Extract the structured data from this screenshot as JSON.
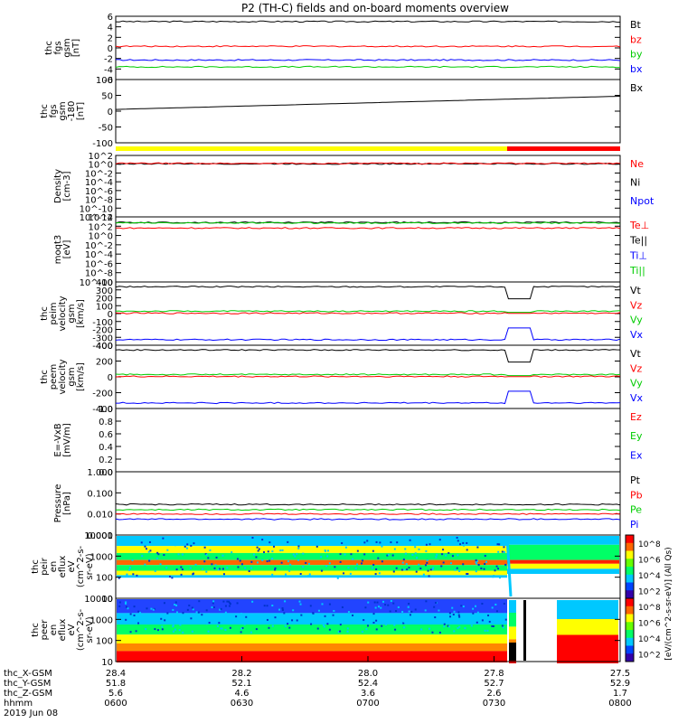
{
  "title": "P2 (TH-C) fields and on-board moments overview",
  "chart_data": {
    "type": "line",
    "x_time": [
      "0600",
      "0630",
      "0700",
      "0730",
      "0800"
    ],
    "orbit": {
      "rows": [
        {
          "label": "thc_X-GSM",
          "values": [
            "28.4",
            "28.2",
            "28.0",
            "27.8",
            "27.5"
          ]
        },
        {
          "label": "thc_Y-GSM",
          "values": [
            "51.8",
            "52.1",
            "52.4",
            "52.7",
            "52.9"
          ]
        },
        {
          "label": "thc_Z-GSM",
          "values": [
            "5.6",
            "4.6",
            "3.6",
            "2.6",
            "1.7"
          ]
        },
        {
          "label": "hhmm",
          "values": [
            "0600",
            "0630",
            "0700",
            "0730",
            "0800"
          ]
        }
      ],
      "date": "2019 Jun 08"
    },
    "mode_bar": {
      "yellow_until": "0724",
      "red_from": "0724",
      "colors": [
        "#ffff00",
        "#ff0000"
      ]
    },
    "panels": [
      {
        "ylabel": [
          "thc",
          "fgs",
          "gsm",
          "[nT]"
        ],
        "ticks": [
          "6",
          "4",
          "2",
          "0",
          "-2",
          "-4",
          "-6"
        ],
        "ylim": [
          -6,
          6
        ],
        "legend": [
          {
            "name": "Bt",
            "color": "#000000"
          },
          {
            "name": "bz",
            "color": "#ff0000"
          },
          {
            "name": "by",
            "color": "#00cc00"
          },
          {
            "name": "bx",
            "color": "#0000ff"
          }
        ],
        "series": [
          {
            "color": "#000000",
            "level": 5.0
          },
          {
            "color": "#ff0000",
            "level": 0.3
          },
          {
            "color": "#0000ff",
            "level": -2.3
          },
          {
            "color": "#00cc00",
            "level": -3.6
          }
        ]
      },
      {
        "ylabel": [
          "thc",
          "fgs",
          "gsm",
          "-180",
          "[nT]"
        ],
        "ticks": [
          "100",
          "50",
          "0",
          "-50",
          "-100"
        ],
        "ylim": [
          -125,
          110
        ],
        "legend": [
          {
            "name": "Bx",
            "color": "#000000"
          }
        ],
        "series": [
          {
            "color": "#000000",
            "from": -1,
            "to": 48
          }
        ]
      },
      {
        "ylabel": [
          "Density",
          "[cm-3]"
        ],
        "ticks": [
          "10^2",
          "10^0",
          "10^-2",
          "10^-4",
          "10^-6",
          "10^-8",
          "10^-10",
          "10^-12"
        ],
        "ylim": [
          -12,
          2
        ],
        "legend": [
          {
            "name": "Ne",
            "color": "#ff0000"
          },
          {
            "name": "Ni",
            "color": "#000000"
          },
          {
            "name": "Npot",
            "color": "#0000ff"
          }
        ],
        "series": [
          {
            "color": "#000000",
            "level": 0.1
          },
          {
            "color": "#ff0000",
            "level": 0.2
          }
        ]
      },
      {
        "ylabel": [
          "moqt3",
          "[eV]"
        ],
        "ticks": [
          "10^4",
          "10^2",
          "10^0",
          "10^-2",
          "10^-4",
          "10^-6",
          "10^-8",
          "10^-10"
        ],
        "ylim": [
          -10,
          4
        ],
        "legend": [
          {
            "name": "Te⊥",
            "color": "#ff0000"
          },
          {
            "name": "Te||",
            "color": "#000000"
          },
          {
            "name": "Ti⊥",
            "color": "#0000ff"
          },
          {
            "name": "Ti||",
            "color": "#00cc00"
          }
        ],
        "series": [
          {
            "color": "#000000",
            "level": 2.8
          },
          {
            "color": "#00cc00",
            "level": 2.7
          },
          {
            "color": "#ff0000",
            "level": 1.6
          }
        ]
      },
      {
        "ylabel": [
          "thc",
          "peim",
          "velocity",
          "gsm",
          "[km/s]"
        ],
        "ticks": [
          "400",
          "300",
          "200",
          "100",
          "0",
          "-100",
          "-200",
          "-300",
          "-400"
        ],
        "ylim": [
          -400,
          400
        ],
        "legend": [
          {
            "name": "Vt",
            "color": "#000000"
          },
          {
            "name": "Vz",
            "color": "#ff0000"
          },
          {
            "name": "Vy",
            "color": "#00cc00"
          },
          {
            "name": "Vx",
            "color": "#0000ff"
          }
        ],
        "series": [
          {
            "color": "#000000",
            "level": 340
          },
          {
            "color": "#00cc00",
            "level": 30
          },
          {
            "color": "#ff0000",
            "level": 5
          },
          {
            "color": "#0000ff",
            "level": -330
          }
        ]
      },
      {
        "ylabel": [
          "thc",
          "peem",
          "velocity",
          "gsm",
          "[km/s]"
        ],
        "ticks": [
          "400",
          "200",
          "0",
          "-200",
          "-400"
        ],
        "ylim": [
          -400,
          400
        ],
        "legend": [
          {
            "name": "Vt",
            "color": "#000000"
          },
          {
            "name": "Vz",
            "color": "#ff0000"
          },
          {
            "name": "Vy",
            "color": "#00cc00"
          },
          {
            "name": "Vx",
            "color": "#0000ff"
          }
        ],
        "series": [
          {
            "color": "#000000",
            "level": 340
          },
          {
            "color": "#00cc00",
            "level": 30
          },
          {
            "color": "#ff0000",
            "level": 5
          },
          {
            "color": "#0000ff",
            "level": -330
          }
        ]
      },
      {
        "ylabel": [
          "E=-VxB",
          "[mV/m]"
        ],
        "ticks": [
          "1.0",
          "0.8",
          "0.6",
          "0.4",
          "0.2",
          "0.0"
        ],
        "ylim": [
          0,
          1
        ],
        "legend": [
          {
            "name": "Ez",
            "color": "#ff0000"
          },
          {
            "name": "Ey",
            "color": "#00cc00"
          },
          {
            "name": "Ex",
            "color": "#0000ff"
          }
        ],
        "series": []
      },
      {
        "ylabel": [
          "Pressure",
          "[nPa]"
        ],
        "ticks": [
          "1.000",
          "0.100",
          "0.010",
          "0.001"
        ],
        "ylim": [
          -3,
          0
        ],
        "legend": [
          {
            "name": "Pt",
            "color": "#000000"
          },
          {
            "name": "Pb",
            "color": "#ff0000"
          },
          {
            "name": "Pe",
            "color": "#00cc00"
          },
          {
            "name": "Pi",
            "color": "#0000ff"
          }
        ],
        "series": [
          {
            "color": "#000000",
            "level": -1.55
          },
          {
            "color": "#00cc00",
            "level": -1.8
          },
          {
            "color": "#ff0000",
            "level": -2.0
          },
          {
            "color": "#0000ff",
            "level": -2.25
          }
        ]
      },
      {
        "ylabel": [
          "thc",
          "peir",
          "en",
          "eflux",
          "eV",
          "(cm^2-s-",
          "sr-eV)"
        ],
        "ticks": [
          "10000",
          "1000",
          "100",
          "10"
        ],
        "ylim": [
          0.7,
          4.3
        ],
        "spectrogram": "ion"
      },
      {
        "ylabel": [
          "thc",
          "peer",
          "en",
          "eflux",
          "eV",
          "(cm^2-s-",
          "sr-eV)"
        ],
        "ticks": [
          "10000",
          "1000",
          "100",
          "10"
        ],
        "ylim": [
          0.7,
          4.3
        ],
        "spectrogram": "electron"
      }
    ],
    "colorbar": {
      "ticks": [
        "10^8",
        "10^6",
        "10^4",
        "10^2",
        "10^8",
        "10^6",
        "10^4",
        "10^2"
      ],
      "label": "[eV/(cm^2-s-sr-eV)] (All Qs)"
    }
  }
}
